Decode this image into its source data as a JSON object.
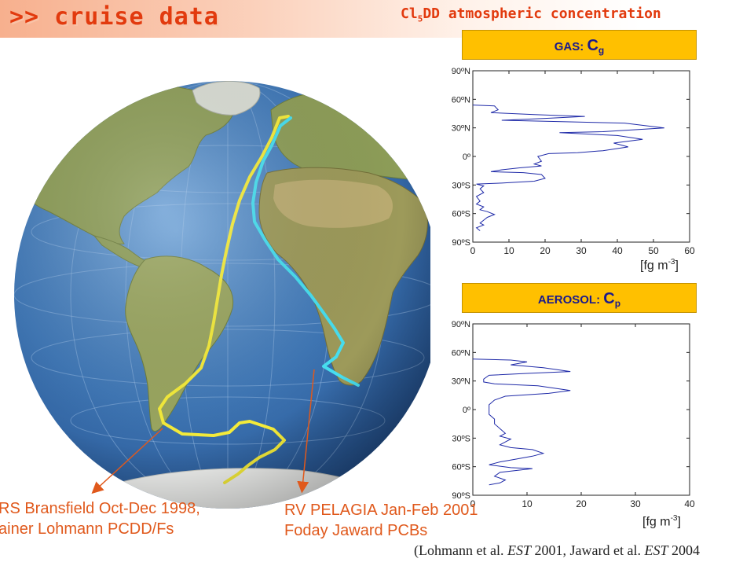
{
  "slide": {
    "title": ">> cruise data",
    "subtitle_prefix": "Cl",
    "subtitle_sub": "5",
    "subtitle_rest": "DD atmospheric concentration"
  },
  "gas_panel": {
    "label_prefix": "GAS: ",
    "symbol": "C",
    "symbol_sub": "g",
    "unit_pre": "[fg m",
    "unit_sup": "-3",
    "unit_post": "]"
  },
  "aerosol_panel": {
    "label_prefix": "AEROSOL: ",
    "symbol": "C",
    "symbol_sub": "p",
    "unit_pre": "[fg m",
    "unit_sup": "-3",
    "unit_post": "]"
  },
  "chart_data": [
    {
      "type": "line",
      "xlim": [
        0,
        60
      ],
      "ylim": [
        -90,
        90
      ],
      "x_ticks": [
        0,
        10,
        20,
        30,
        40,
        50,
        60
      ],
      "y_ticks": [
        90,
        60,
        30,
        0,
        -30,
        -60,
        -90
      ],
      "y_tick_labels": [
        "90ºN",
        "60ºN",
        "30ºN",
        "0º",
        "30ºS",
        "60ºS",
        "90ºS"
      ],
      "grid": false,
      "series_color": "#1f2aa8",
      "series": [
        {
          "points": [
            [
              0,
              54
            ],
            [
              6,
              53
            ],
            [
              7,
              49
            ],
            [
              5,
              46
            ],
            [
              17,
              44
            ],
            [
              31,
              42
            ],
            [
              20,
              40
            ],
            [
              8,
              38
            ],
            [
              20,
              37
            ],
            [
              42,
              35
            ],
            [
              53,
              30
            ],
            [
              36,
              26
            ],
            [
              24,
              25
            ],
            [
              40,
              22
            ],
            [
              47,
              18
            ],
            [
              39,
              14
            ],
            [
              43,
              10
            ],
            [
              36,
              6
            ],
            [
              29,
              4
            ],
            [
              21,
              3
            ],
            [
              18,
              0
            ],
            [
              19,
              -5
            ],
            [
              17,
              -8
            ],
            [
              19,
              -10
            ],
            [
              13,
              -12
            ],
            [
              8,
              -14
            ],
            [
              5,
              -16
            ],
            [
              14,
              -17
            ],
            [
              19,
              -19
            ],
            [
              20,
              -23
            ],
            [
              17,
              -26
            ],
            [
              8,
              -28
            ],
            [
              1,
              -29
            ],
            [
              3,
              -31
            ],
            [
              2,
              -34
            ],
            [
              3,
              -38
            ],
            [
              1,
              -42
            ],
            [
              2,
              -47
            ],
            [
              1,
              -50
            ],
            [
              3,
              -53
            ],
            [
              2,
              -56
            ],
            [
              4,
              -58
            ],
            [
              6,
              -61
            ],
            [
              4,
              -64
            ],
            [
              3,
              -67
            ],
            [
              2,
              -70
            ],
            [
              3,
              -72
            ],
            [
              1,
              -75
            ],
            [
              2,
              -78
            ]
          ]
        }
      ]
    },
    {
      "type": "line",
      "xlim": [
        0,
        40
      ],
      "ylim": [
        -90,
        90
      ],
      "x_ticks": [
        0,
        10,
        20,
        30,
        40
      ],
      "y_ticks": [
        90,
        60,
        30,
        0,
        -30,
        -60,
        -90
      ],
      "y_tick_labels": [
        "90ºN",
        "60ºN",
        "30ºN",
        "0º",
        "30ºS",
        "60ºS",
        "90ºS"
      ],
      "grid": false,
      "series_color": "#1f2aa8",
      "series": [
        {
          "points": [
            [
              0,
              53
            ],
            [
              7,
              52
            ],
            [
              10,
              50
            ],
            [
              7,
              47
            ],
            [
              13,
              44
            ],
            [
              18,
              40
            ],
            [
              10,
              38
            ],
            [
              3,
              36
            ],
            [
              2,
              32
            ],
            [
              2,
              29
            ],
            [
              4,
              27
            ],
            [
              12,
              25
            ],
            [
              18,
              20
            ],
            [
              14,
              17
            ],
            [
              6,
              14
            ],
            [
              4,
              10
            ],
            [
              3,
              5
            ],
            [
              3,
              0
            ],
            [
              3,
              -5
            ],
            [
              4,
              -10
            ],
            [
              4,
              -15
            ],
            [
              5,
              -20
            ],
            [
              6,
              -25
            ],
            [
              5,
              -28
            ],
            [
              7,
              -31
            ],
            [
              6,
              -34
            ],
            [
              5,
              -37
            ],
            [
              7,
              -40
            ],
            [
              11,
              -42
            ],
            [
              13,
              -46
            ],
            [
              11,
              -49
            ],
            [
              8,
              -52
            ],
            [
              5,
              -55
            ],
            [
              3,
              -58
            ],
            [
              7,
              -61
            ],
            [
              11,
              -62
            ],
            [
              8,
              -64
            ],
            [
              5,
              -66
            ],
            [
              4,
              -70
            ],
            [
              6,
              -74
            ],
            [
              5,
              -77
            ],
            [
              3,
              -79
            ]
          ]
        }
      ]
    }
  ],
  "callouts": {
    "left_line1": "RS Bransfield Oct-Dec 1998,",
    "left_line2": "ainer Lohmann PCDD/Fs",
    "right_line1": "RV PELAGIA Jan-Feb 2001",
    "right_line2": "Foday Jaward PCBs"
  },
  "citation": {
    "part1": "(Lohmann et al. ",
    "journal1": "EST",
    "part2": " 2001, Jaward et al. ",
    "journal2": "EST",
    "part3": " 2004"
  },
  "colors": {
    "accent": "#e23a0e",
    "header_fill": "#ffc000",
    "yellow_track": "#f5ec3a",
    "cyan_track": "#47dff0",
    "callout_arrow": "#e0591c",
    "ocean": "#3f77b6",
    "land": "#8d9d58"
  }
}
